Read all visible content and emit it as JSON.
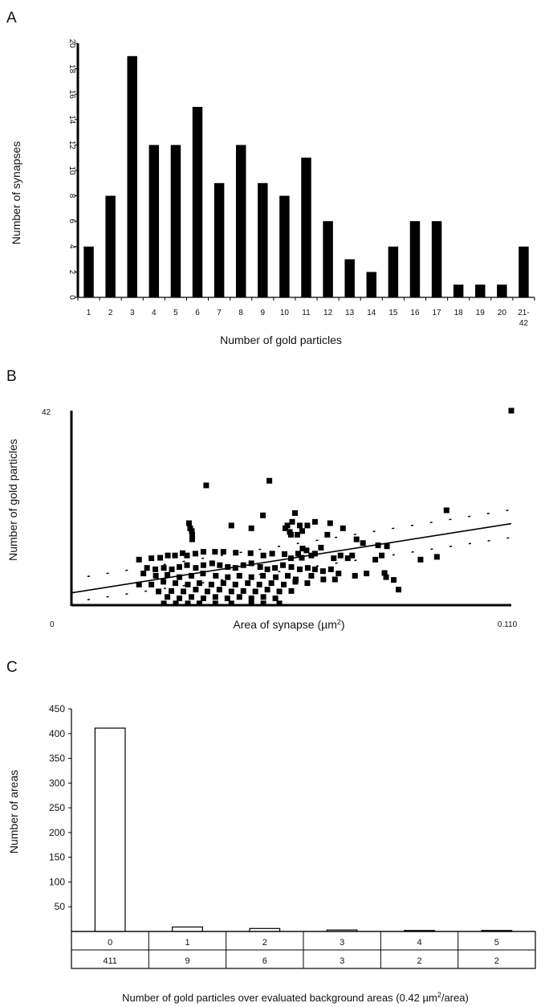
{
  "chart_data": [
    {
      "panel": "A",
      "type": "bar",
      "categories": [
        "1",
        "2",
        "3",
        "4",
        "5",
        "6",
        "7",
        "8",
        "9",
        "10",
        "11",
        "12",
        "13",
        "14",
        "15",
        "16",
        "17",
        "18",
        "19",
        "20",
        "21-42"
      ],
      "values": [
        4,
        8,
        19,
        12,
        12,
        15,
        9,
        12,
        9,
        8,
        11,
        6,
        3,
        2,
        4,
        6,
        6,
        1,
        1,
        1,
        4
      ],
      "xlabel": "Number of gold particles",
      "ylabel": "Number of synapses",
      "ylim": [
        0,
        20
      ],
      "yticks": [
        "0",
        "2",
        "4",
        "6",
        "8",
        "10",
        "12",
        "14",
        "16",
        "18",
        "20"
      ],
      "bar_color": "#000000",
      "grid": false
    },
    {
      "panel": "B",
      "type": "scatter",
      "xlabel": "Area of synapse (µm²)",
      "xlabel_main": "Area of synapse (",
      "xlabel_unit": "µm",
      "xlabel_sup": "2",
      "xlabel_end": ")",
      "ylabel": "Number of gold particles",
      "xlim": [
        0,
        0.11
      ],
      "ylim": [
        0,
        42
      ],
      "x_tick_labels": [
        "0",
        "0.110"
      ],
      "y_tick_labels": [
        "42"
      ],
      "trendline": {
        "x": [
          0,
          0.11
        ],
        "y": [
          2.5,
          17.5
        ]
      },
      "confidence_bands": {
        "lower": [
          0.5,
          14.5
        ],
        "upper": [
          5.5,
          20.5
        ]
      },
      "points": [
        [
          0.0337,
          25.8
        ],
        [
          0.0495,
          26.8
        ],
        [
          0.11,
          42
        ],
        [
          0.0938,
          20.4
        ],
        [
          0.0559,
          19.8
        ],
        [
          0.0479,
          19.3
        ],
        [
          0.0552,
          17.9
        ],
        [
          0.0609,
          17.9
        ],
        [
          0.0647,
          17.6
        ],
        [
          0.054,
          17.1
        ],
        [
          0.0571,
          17.1
        ],
        [
          0.059,
          17.1
        ],
        [
          0.04,
          17.1
        ],
        [
          0.045,
          16.5
        ],
        [
          0.0294,
          17.6
        ],
        [
          0.0297,
          16.5
        ],
        [
          0.0301,
          15.9
        ],
        [
          0.0302,
          15.1
        ],
        [
          0.0302,
          14.1
        ],
        [
          0.0535,
          16.5
        ],
        [
          0.0546,
          15.7
        ],
        [
          0.0565,
          15.1
        ],
        [
          0.0549,
          15.1
        ],
        [
          0.0577,
          15.9
        ],
        [
          0.064,
          15.1
        ],
        [
          0.0679,
          16.5
        ],
        [
          0.0713,
          14.1
        ],
        [
          0.0767,
          12.8
        ],
        [
          0.0729,
          13.3
        ],
        [
          0.0789,
          12.6
        ],
        [
          0.0776,
          10.6
        ],
        [
          0.076,
          9.7
        ],
        [
          0.0702,
          10.6
        ],
        [
          0.0691,
          10.0
        ],
        [
          0.0673,
          10.6
        ],
        [
          0.0656,
          10.0
        ],
        [
          0.0609,
          11.0
        ],
        [
          0.0624,
          12.3
        ],
        [
          0.0578,
          12.1
        ],
        [
          0.0588,
          11.7
        ],
        [
          0.06,
          10.6
        ],
        [
          0.0567,
          11.0
        ],
        [
          0.0576,
          10.1
        ],
        [
          0.0549,
          10.0
        ],
        [
          0.0533,
          10.9
        ],
        [
          0.0502,
          11.0
        ],
        [
          0.048,
          10.6
        ],
        [
          0.0448,
          11.1
        ],
        [
          0.0411,
          11.2
        ],
        [
          0.038,
          11.4
        ],
        [
          0.0359,
          11.4
        ],
        [
          0.033,
          11.4
        ],
        [
          0.031,
          11.0
        ],
        [
          0.0289,
          10.6
        ],
        [
          0.0278,
          11.1
        ],
        [
          0.0259,
          10.6
        ],
        [
          0.0241,
          10.6
        ],
        [
          0.0222,
          10.1
        ],
        [
          0.02,
          10.0
        ],
        [
          0.0169,
          9.7
        ],
        [
          0.0189,
          7.9
        ],
        [
          0.021,
          7.6
        ],
        [
          0.0231,
          7.9
        ],
        [
          0.0251,
          7.6
        ],
        [
          0.027,
          8.1
        ],
        [
          0.0289,
          8.5
        ],
        [
          0.0311,
          7.9
        ],
        [
          0.033,
          8.5
        ],
        [
          0.0352,
          8.9
        ],
        [
          0.0371,
          8.5
        ],
        [
          0.0391,
          8.1
        ],
        [
          0.041,
          7.9
        ],
        [
          0.043,
          8.5
        ],
        [
          0.045,
          8.9
        ],
        [
          0.0472,
          8.1
        ],
        [
          0.049,
          7.6
        ],
        [
          0.0509,
          7.9
        ],
        [
          0.0529,
          8.5
        ],
        [
          0.055,
          8.1
        ],
        [
          0.0571,
          7.6
        ],
        [
          0.0591,
          7.9
        ],
        [
          0.0609,
          7.6
        ],
        [
          0.0629,
          7.2
        ],
        [
          0.0649,
          7.6
        ],
        [
          0.0668,
          6.7
        ],
        [
          0.0709,
          6.2
        ],
        [
          0.0738,
          6.7
        ],
        [
          0.0783,
          6.8
        ],
        [
          0.0806,
          5.3
        ],
        [
          0.0787,
          5.9
        ],
        [
          0.0818,
          3.2
        ],
        [
          0.0873,
          9.7
        ],
        [
          0.0914,
          10.3
        ],
        [
          0.018,
          6.7
        ],
        [
          0.0211,
          6.2
        ],
        [
          0.024,
          6.4
        ],
        [
          0.027,
          5.9
        ],
        [
          0.03,
          6.2
        ],
        [
          0.0329,
          6.7
        ],
        [
          0.0361,
          6.2
        ],
        [
          0.0391,
          5.9
        ],
        [
          0.042,
          6.2
        ],
        [
          0.045,
          5.9
        ],
        [
          0.0479,
          6.2
        ],
        [
          0.0511,
          5.9
        ],
        [
          0.0541,
          6.2
        ],
        [
          0.0561,
          5.4
        ],
        [
          0.06,
          6.2
        ],
        [
          0.063,
          5.4
        ],
        [
          0.0659,
          5.4
        ],
        [
          0.0169,
          4.3
        ],
        [
          0.02,
          4.3
        ],
        [
          0.023,
          4.9
        ],
        [
          0.026,
          4.6
        ],
        [
          0.0291,
          4.3
        ],
        [
          0.032,
          4.6
        ],
        [
          0.035,
          4.3
        ],
        [
          0.038,
          4.6
        ],
        [
          0.041,
          4.3
        ],
        [
          0.0441,
          4.6
        ],
        [
          0.047,
          4.3
        ],
        [
          0.05,
          4.6
        ],
        [
          0.0531,
          4.3
        ],
        [
          0.056,
          4.9
        ],
        [
          0.059,
          4.6
        ],
        [
          0.0218,
          2.8
        ],
        [
          0.025,
          2.9
        ],
        [
          0.028,
          2.8
        ],
        [
          0.0311,
          3.2
        ],
        [
          0.034,
          2.8
        ],
        [
          0.037,
          3.2
        ],
        [
          0.04,
          2.8
        ],
        [
          0.043,
          2.9
        ],
        [
          0.046,
          2.8
        ],
        [
          0.049,
          3.2
        ],
        [
          0.052,
          2.8
        ],
        [
          0.055,
          2.9
        ],
        [
          0.024,
          1.6
        ],
        [
          0.027,
          1.3
        ],
        [
          0.03,
          1.6
        ],
        [
          0.033,
          1.3
        ],
        [
          0.036,
          1.6
        ],
        [
          0.039,
          1.3
        ],
        [
          0.042,
          1.6
        ],
        [
          0.045,
          1.3
        ],
        [
          0.048,
          1.6
        ],
        [
          0.051,
          1.3
        ],
        [
          0.0231,
          0.2
        ],
        [
          0.0261,
          0.2
        ],
        [
          0.0291,
          0.2
        ],
        [
          0.032,
          0.2
        ],
        [
          0.036,
          0.2
        ],
        [
          0.04,
          0.2
        ],
        [
          0.045,
          0.2
        ],
        [
          0.048,
          0.2
        ],
        [
          0.052,
          0.2
        ]
      ],
      "marker_color": "#000000"
    },
    {
      "panel": "C",
      "type": "bar",
      "categories": [
        "0",
        "1",
        "2",
        "3",
        "4",
        "5"
      ],
      "values": [
        411,
        9,
        6,
        3,
        2,
        2
      ],
      "xlabel": "Number of gold particles over evaluated background areas (0.42 µm²/area)",
      "xlabel_main": "Number of gold particles over evaluated background areas (0.42 ",
      "xlabel_unit": "µm",
      "xlabel_sup": "2",
      "xlabel_end": "/area)",
      "ylabel": "Number of areas",
      "ylim": [
        0,
        450
      ],
      "yticks": [
        "50",
        "100",
        "150",
        "200",
        "250",
        "300",
        "350",
        "400",
        "450"
      ],
      "bar_fill": "#ffffff",
      "bar_stroke": "#000000",
      "table_rows": [
        [
          "0",
          "1",
          "2",
          "3",
          "4",
          "5"
        ],
        [
          "411",
          "9",
          "6",
          "3",
          "2",
          "2"
        ]
      ],
      "grid": false
    }
  ],
  "panels": {
    "a": "A",
    "b": "B",
    "c": "C"
  }
}
